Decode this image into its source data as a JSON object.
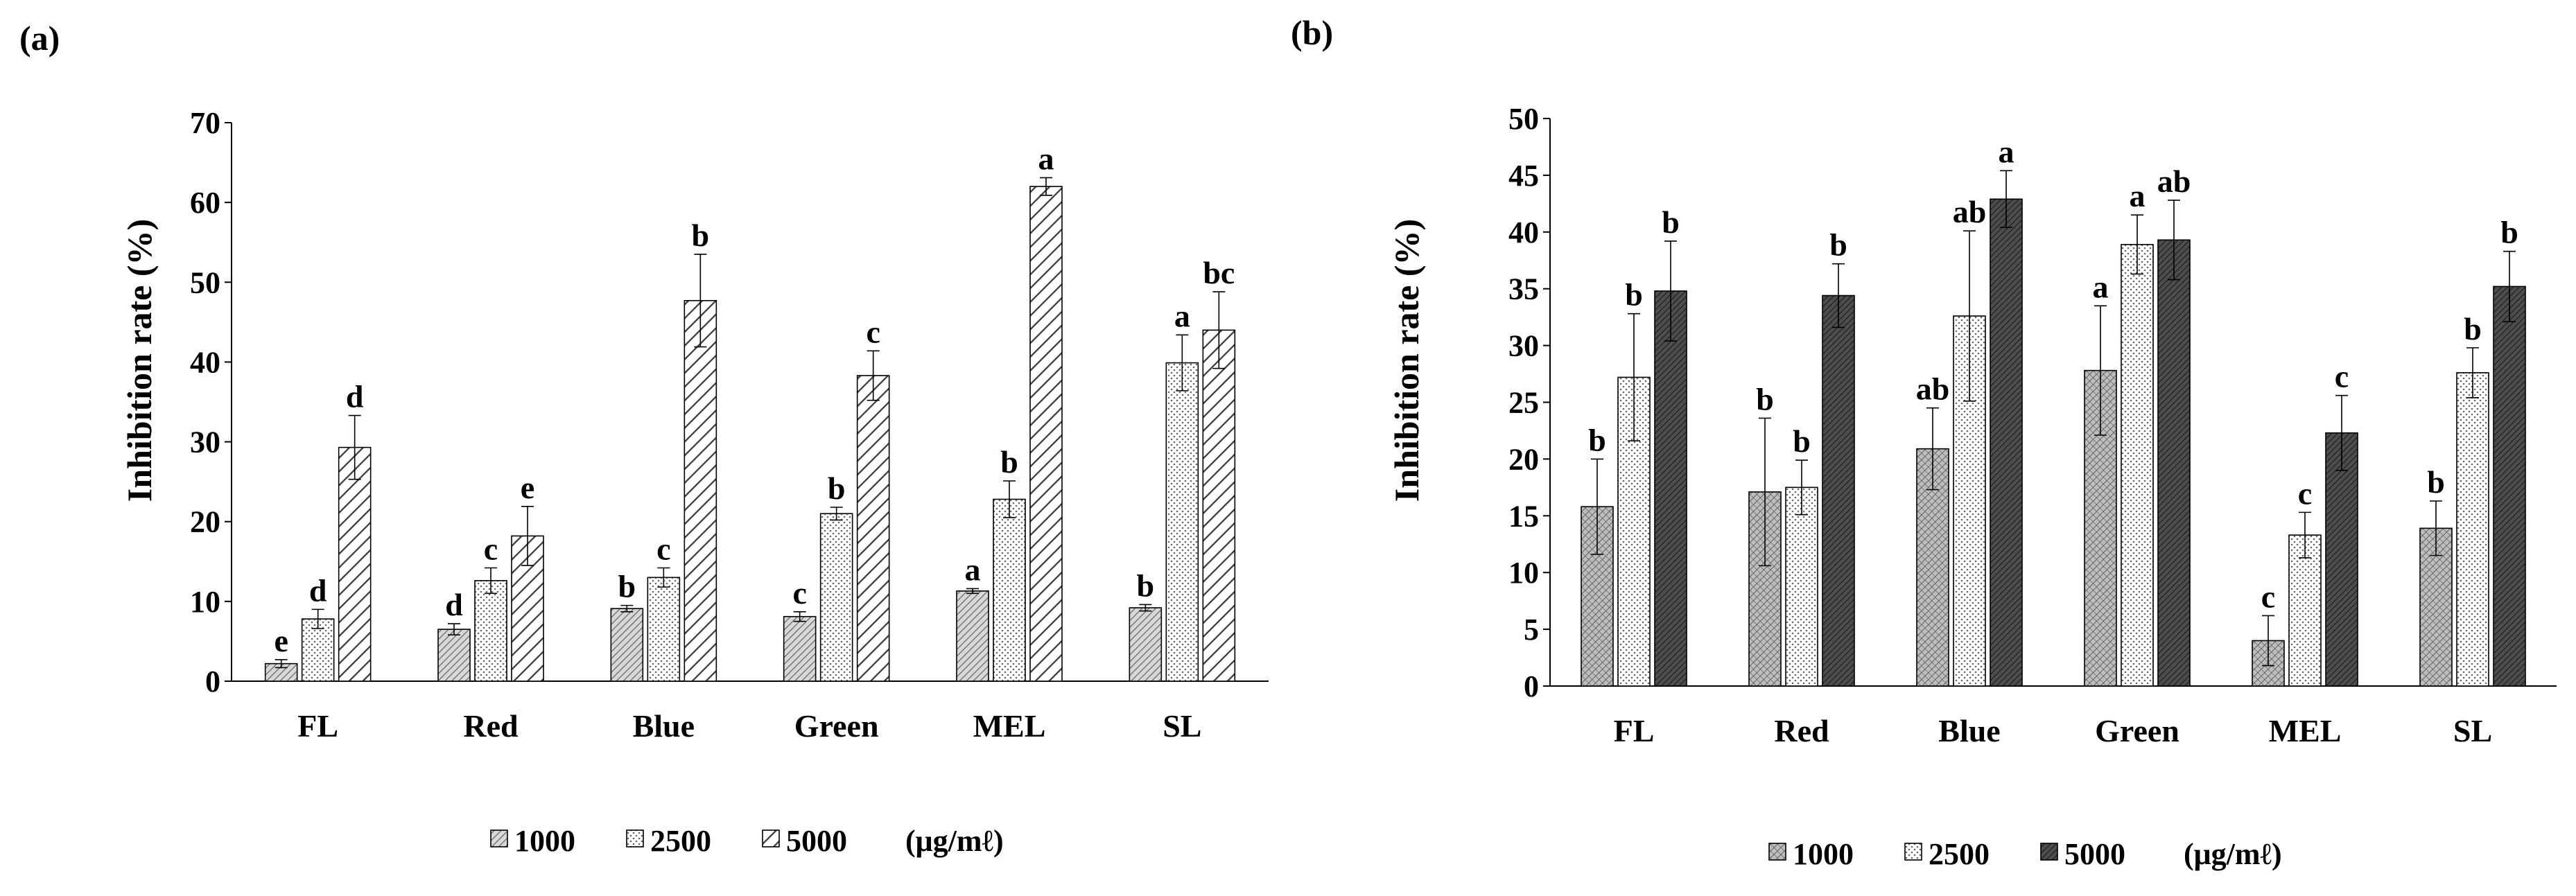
{
  "chart_data": [
    {
      "panel_label": "(a)",
      "type": "bar",
      "title": "",
      "xlabel": "",
      "ylabel": "Inhibition rate (%)",
      "ylim": [
        0,
        70
      ],
      "yticks": [
        0,
        10,
        20,
        30,
        40,
        50,
        60,
        70
      ],
      "ytick_labels": [
        "0",
        "10",
        "20",
        "30",
        "40",
        "50",
        "60",
        "70"
      ],
      "categories": [
        "FL",
        "Red",
        "Blue",
        "Green",
        "MEL",
        "SL"
      ],
      "series": [
        {
          "name": "1000",
          "pattern": "dense-hatch",
          "values": [
            2.2,
            6.5,
            9.1,
            8.1,
            11.3,
            9.2
          ],
          "errors": [
            0.5,
            0.7,
            0.4,
            0.6,
            0.3,
            0.4
          ],
          "letters": [
            "e",
            "d",
            "b",
            "c",
            "a",
            "b"
          ]
        },
        {
          "name": "2500",
          "pattern": "dots",
          "values": [
            7.8,
            12.6,
            13.0,
            21.0,
            22.8,
            39.9
          ],
          "errors": [
            1.2,
            1.6,
            1.2,
            0.8,
            2.3,
            3.5
          ],
          "letters": [
            "d",
            "c",
            "c",
            "b",
            "b",
            "a"
          ]
        },
        {
          "name": "5000",
          "pattern": "diagonal",
          "values": [
            29.3,
            18.2,
            47.7,
            38.3,
            62.0,
            44.0
          ],
          "errors": [
            4.0,
            3.7,
            5.8,
            3.1,
            1.1,
            4.8
          ],
          "letters": [
            "d",
            "e",
            "b",
            "c",
            "a",
            "bc"
          ]
        }
      ],
      "legend": {
        "position": "bottom",
        "unit": "(μg/mℓ)"
      }
    },
    {
      "panel_label": "(b)",
      "type": "bar",
      "title": "",
      "xlabel": "",
      "ylabel": "Inhibition rate (%)",
      "ylim": [
        0,
        50
      ],
      "yticks": [
        0,
        5,
        10,
        15,
        20,
        25,
        30,
        35,
        40,
        45,
        50
      ],
      "ytick_labels": [
        "0",
        "5",
        "10",
        "15",
        "20",
        "25",
        "30",
        "35",
        "40",
        "45",
        "50"
      ],
      "categories": [
        "FL",
        "Red",
        "Blue",
        "Green",
        "MEL",
        "SL"
      ],
      "series": [
        {
          "name": "1000",
          "pattern": "cross-hatch",
          "values": [
            15.8,
            17.1,
            20.9,
            27.8,
            4.0,
            13.9
          ],
          "errors": [
            4.2,
            6.5,
            3.6,
            5.7,
            2.2,
            2.4
          ],
          "letters": [
            "b",
            "b",
            "ab",
            "a",
            "c",
            "b"
          ]
        },
        {
          "name": "2500",
          "pattern": "dots",
          "values": [
            27.2,
            17.5,
            32.6,
            38.9,
            13.3,
            27.6
          ],
          "errors": [
            5.6,
            2.4,
            7.5,
            2.6,
            2.0,
            2.2
          ],
          "letters": [
            "b",
            "b",
            "ab",
            "a",
            "c",
            "b"
          ]
        },
        {
          "name": "5000",
          "pattern": "dark-dense",
          "values": [
            34.8,
            34.4,
            42.9,
            39.3,
            22.3,
            35.2
          ],
          "errors": [
            4.4,
            2.8,
            2.5,
            3.5,
            3.3,
            3.1
          ],
          "letters": [
            "b",
            "b",
            "a",
            "ab",
            "c",
            "b"
          ]
        }
      ],
      "legend": {
        "position": "bottom",
        "unit": "(μg/mℓ)"
      }
    }
  ]
}
